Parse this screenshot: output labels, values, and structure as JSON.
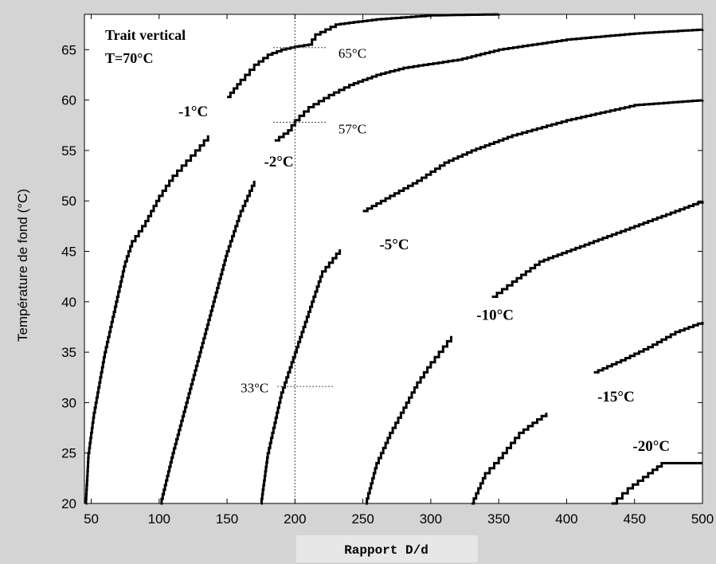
{
  "chart_data": {
    "type": "line",
    "title": "",
    "xlabel": "Rapport D/d",
    "ylabel": "Température de fond (°C)",
    "xlim": [
      45,
      500
    ],
    "ylim": [
      20,
      68.5
    ],
    "x_ticks": [
      50,
      100,
      150,
      200,
      250,
      300,
      350,
      400,
      450,
      500
    ],
    "y_ticks": [
      20,
      25,
      30,
      35,
      40,
      45,
      50,
      55,
      60,
      65
    ],
    "grid": false,
    "legend": "none",
    "box_text": [
      "Trait vertical",
      "T=70°C"
    ],
    "series": [
      {
        "name": "-1°C",
        "label_pos": [
          136,
          58.4
        ],
        "points": [
          [
            46,
            20
          ],
          [
            48,
            25
          ],
          [
            52,
            29
          ],
          [
            56,
            32
          ],
          [
            60,
            35
          ],
          [
            65,
            38
          ],
          [
            70,
            41
          ],
          [
            75,
            44
          ],
          [
            80,
            46
          ],
          [
            90,
            48
          ],
          [
            100,
            50.5
          ],
          [
            110,
            52.5
          ],
          [
            120,
            54
          ],
          [
            130,
            55.5
          ],
          [
            136,
            56.5
          ]
        ]
      },
      {
        "name": "-1°C",
        "points": [
          [
            150,
            60.3
          ],
          [
            160,
            62
          ],
          [
            170,
            63.5
          ],
          [
            180,
            64.5
          ],
          [
            190,
            65
          ],
          [
            200,
            65.3
          ],
          [
            210,
            65.5
          ],
          [
            215,
            66.5
          ],
          [
            230,
            67.5
          ],
          [
            260,
            68
          ],
          [
            300,
            68.4
          ],
          [
            350,
            68.5
          ]
        ]
      },
      {
        "name": "-2°C",
        "label_pos": [
          199,
          53.4
        ],
        "points": [
          [
            101,
            20
          ],
          [
            110,
            25
          ],
          [
            120,
            30
          ],
          [
            130,
            35
          ],
          [
            140,
            40
          ],
          [
            150,
            45
          ],
          [
            160,
            49
          ],
          [
            170,
            52
          ]
        ]
      },
      {
        "name": "-2°C",
        "points": [
          [
            185,
            56
          ],
          [
            195,
            57
          ],
          [
            200,
            58
          ],
          [
            210,
            59.3
          ],
          [
            225,
            60.5
          ],
          [
            240,
            61.5
          ],
          [
            260,
            62.5
          ],
          [
            280,
            63.2
          ],
          [
            320,
            64
          ],
          [
            350,
            65
          ],
          [
            400,
            66
          ],
          [
            450,
            66.6
          ],
          [
            500,
            67
          ]
        ]
      },
      {
        "name": "-5°C",
        "label_pos": [
          284,
          45.2
        ],
        "points": [
          [
            175,
            20
          ],
          [
            180,
            25
          ],
          [
            185,
            28
          ],
          [
            190,
            31
          ],
          [
            195,
            33
          ],
          [
            200,
            35
          ],
          [
            210,
            39
          ],
          [
            220,
            43
          ],
          [
            233,
            45.2
          ]
        ]
      },
      {
        "name": "-5°C",
        "points": [
          [
            250,
            49
          ],
          [
            270,
            50.5
          ],
          [
            290,
            52
          ],
          [
            310,
            53.8
          ],
          [
            330,
            55
          ],
          [
            360,
            56.5
          ],
          [
            400,
            58
          ],
          [
            450,
            59.5
          ],
          [
            500,
            60
          ]
        ]
      },
      {
        "name": "-10°C",
        "label_pos": [
          361,
          38.2
        ],
        "points": [
          [
            252,
            20
          ],
          [
            260,
            24
          ],
          [
            270,
            27
          ],
          [
            280,
            29.5
          ],
          [
            290,
            32
          ],
          [
            300,
            34
          ],
          [
            315,
            36.6
          ]
        ]
      },
      {
        "name": "-10°C",
        "points": [
          [
            345,
            40.5
          ],
          [
            360,
            42
          ],
          [
            380,
            44
          ],
          [
            400,
            45
          ],
          [
            420,
            46
          ],
          [
            450,
            47.5
          ],
          [
            480,
            49
          ],
          [
            500,
            50
          ]
        ]
      },
      {
        "name": "-15°C",
        "label_pos": [
          450,
          30.1
        ],
        "points": [
          [
            330,
            20
          ],
          [
            340,
            23
          ],
          [
            350,
            24.5
          ],
          [
            365,
            27
          ],
          [
            385,
            29
          ]
        ]
      },
      {
        "name": "-15°C",
        "points": [
          [
            420,
            33
          ],
          [
            440,
            34.2
          ],
          [
            460,
            35.5
          ],
          [
            480,
            37
          ],
          [
            500,
            38
          ]
        ]
      },
      {
        "name": "-20°C",
        "label_pos": [
          476,
          25.2
        ],
        "points": [
          [
            433,
            20
          ],
          [
            445,
            21.5
          ],
          [
            460,
            23
          ],
          [
            470,
            24
          ],
          [
            500,
            24
          ]
        ]
      }
    ],
    "annotations": [
      {
        "text": "65°C",
        "x": 223,
        "y": 65.2,
        "label_x": 232,
        "label_y": 64.2
      },
      {
        "text": "57°C",
        "x": 223,
        "y": 57.8,
        "label_x": 232,
        "label_y": 56.7
      },
      {
        "text": "33°C",
        "x": 228,
        "y": 31.6,
        "label_x": 160,
        "label_y": 31
      },
      {
        "text": "",
        "vline_x": 200
      }
    ]
  }
}
